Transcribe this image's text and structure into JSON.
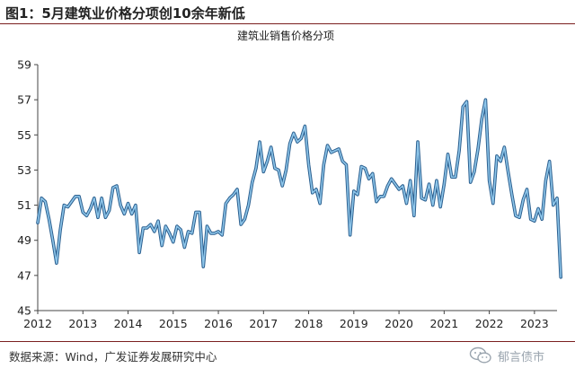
{
  "figure": {
    "title": "图1：5月建筑业价格分项创10余年新低",
    "source": "数据来源：Wind，广发证券发展研究中心",
    "watermark": "郁言债市"
  },
  "colors": {
    "line_outer": "#2b5f8f",
    "line_inner": "#8ec6ea",
    "border_accent": "#7a1f1f",
    "axis": "#444444"
  },
  "chart_data": {
    "type": "line",
    "title": "建筑业销售价格分项",
    "xlabel": "",
    "ylabel": "",
    "ylim": [
      45,
      59
    ],
    "yticks": [
      45,
      47,
      49,
      51,
      53,
      55,
      57,
      59
    ],
    "xlim": [
      2012,
      2023.5
    ],
    "xticks": [
      "2012",
      "2013",
      "2014",
      "2015",
      "2016",
      "2017",
      "2018",
      "2019",
      "2020",
      "2021",
      "2022",
      "2023"
    ],
    "grid": false,
    "legend": "none",
    "series": [
      {
        "x_start": "2012-01",
        "frequency": "monthly",
        "values": [
          50.0,
          51.4,
          51.2,
          50.2,
          49.0,
          47.7,
          49.6,
          51.0,
          50.9,
          51.2,
          51.5,
          51.5,
          50.6,
          50.4,
          50.8,
          51.4,
          50.3,
          51.4,
          50.3,
          50.7,
          52.0,
          52.1,
          51.0,
          50.5,
          51.1,
          50.5,
          51.0,
          48.3,
          49.7,
          49.7,
          49.9,
          49.5,
          50.1,
          48.7,
          49.8,
          49.4,
          48.9,
          49.8,
          49.6,
          48.6,
          49.5,
          49.4,
          50.6,
          50.6,
          47.5,
          49.8,
          49.4,
          49.4,
          49.5,
          49.3,
          51.1,
          51.4,
          51.6,
          51.9,
          49.9,
          50.2,
          51.0,
          52.3,
          53.1,
          54.6,
          52.9,
          53.5,
          54.3,
          53.1,
          53.0,
          52.1,
          53.0,
          54.5,
          55.1,
          54.6,
          54.8,
          55.5,
          53.3,
          51.7,
          51.9,
          51.1,
          53.3,
          54.4,
          54.0,
          54.1,
          54.2,
          53.5,
          53.3,
          49.3,
          51.8,
          51.6,
          53.2,
          53.1,
          52.5,
          52.8,
          51.2,
          51.5,
          51.5,
          52.1,
          52.5,
          52.2,
          51.9,
          52.1,
          51.1,
          52.4,
          50.4,
          54.6,
          51.4,
          51.3,
          52.2,
          51.0,
          52.4,
          50.9,
          52.2,
          53.9,
          52.6,
          52.6,
          54.1,
          56.6,
          56.9,
          52.3,
          52.9,
          54.2,
          55.9,
          57.0,
          52.4,
          51.1,
          53.8,
          53.5,
          54.3,
          52.9,
          51.6,
          50.4,
          50.3,
          51.3,
          51.9,
          50.2,
          50.1,
          50.8,
          50.2,
          52.4,
          53.5,
          51.0,
          51.4,
          46.9
        ]
      }
    ]
  }
}
